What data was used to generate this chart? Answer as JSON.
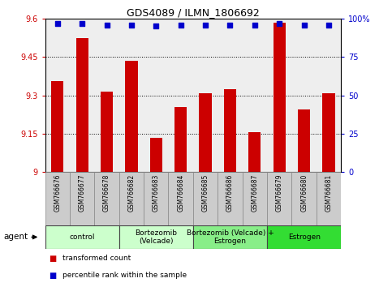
{
  "title": "GDS4089 / ILMN_1806692",
  "samples": [
    "GSM766676",
    "GSM766677",
    "GSM766678",
    "GSM766682",
    "GSM766683",
    "GSM766684",
    "GSM766685",
    "GSM766686",
    "GSM766687",
    "GSM766679",
    "GSM766680",
    "GSM766681"
  ],
  "red_values": [
    9.355,
    9.525,
    9.315,
    9.435,
    9.135,
    9.255,
    9.31,
    9.325,
    9.155,
    9.585,
    9.245,
    9.31
  ],
  "blue_values": [
    97,
    97,
    96,
    96,
    95,
    96,
    96,
    96,
    96,
    97,
    96,
    96
  ],
  "ylim_left": [
    9.0,
    9.6
  ],
  "ylim_right": [
    0,
    100
  ],
  "yticks_left": [
    9.0,
    9.15,
    9.3,
    9.45,
    9.6
  ],
  "yticks_right": [
    0,
    25,
    50,
    75,
    100
  ],
  "ytick_labels_left": [
    "9",
    "9.15",
    "9.3",
    "9.45",
    "9.6"
  ],
  "ytick_labels_right": [
    "0",
    "25",
    "50",
    "75",
    "100%"
  ],
  "groups": [
    {
      "label": "control",
      "start": 0,
      "end": 3,
      "color": "#ccffcc"
    },
    {
      "label": "Bortezomib\n(Velcade)",
      "start": 3,
      "end": 6,
      "color": "#ccffcc"
    },
    {
      "label": "Bortezomib (Velcade) +\nEstrogen",
      "start": 6,
      "end": 9,
      "color": "#88ee88"
    },
    {
      "label": "Estrogen",
      "start": 9,
      "end": 12,
      "color": "#33dd33"
    }
  ],
  "bar_color": "#cc0000",
  "dot_color": "#0000cc",
  "bar_width": 0.5,
  "plot_bg": "#eeeeee",
  "xtick_bg": "#cccccc",
  "white_bg": "#ffffff"
}
